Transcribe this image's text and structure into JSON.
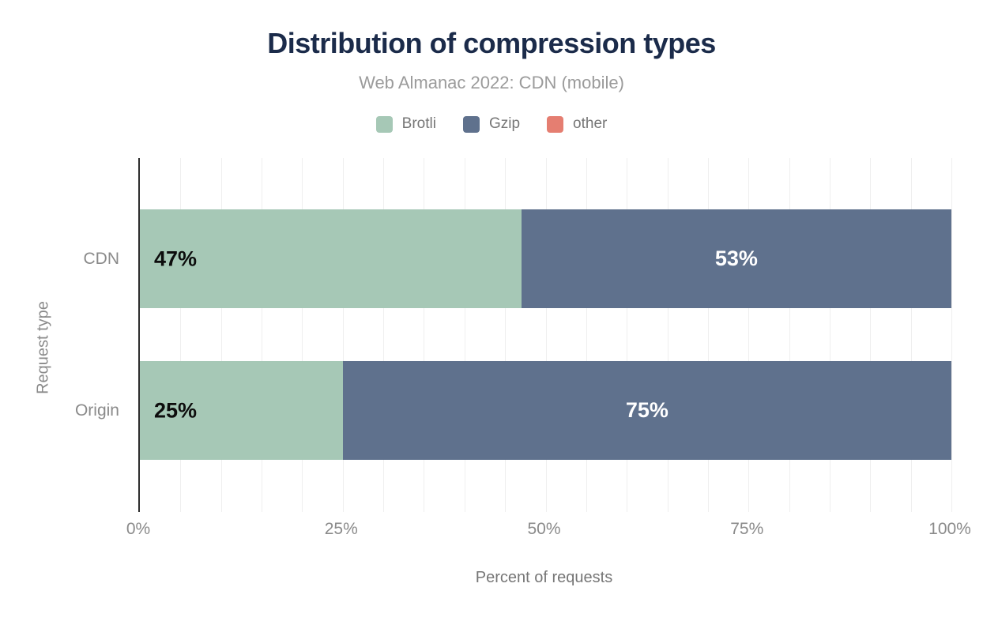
{
  "chart_data": {
    "type": "bar",
    "orientation": "horizontal-stacked",
    "title": "Distribution of compression types",
    "subtitle": "Web Almanac 2022: CDN (mobile)",
    "categories": [
      "CDN",
      "Origin"
    ],
    "series": [
      {
        "name": "Brotli",
        "color": "#a6c8b6",
        "label_color": "#0d0d0d",
        "values": [
          47,
          25
        ]
      },
      {
        "name": "Gzip",
        "color": "#5f718d",
        "label_color": "#ffffff",
        "values": [
          53,
          75
        ]
      },
      {
        "name": "other",
        "color": "#e57e71",
        "label_color": "#ffffff",
        "values": [
          0,
          0
        ]
      }
    ],
    "xlabel": "Percent of requests",
    "ylabel": "Request type",
    "x_ticks": [
      {
        "value": 0,
        "label": "0%"
      },
      {
        "value": 25,
        "label": "25%"
      },
      {
        "value": 50,
        "label": "50%"
      },
      {
        "value": 75,
        "label": "75%"
      },
      {
        "value": 100,
        "label": "100%"
      }
    ],
    "xlim": [
      0,
      100
    ],
    "gridline_step": 5,
    "grid": "vertical-minor",
    "legend_position": "top",
    "value_suffix": "%"
  },
  "colors": {
    "title_text": "#1b2b4a",
    "subtitle_text": "#9b9b9b",
    "axis_text": "#8a8a8a",
    "legend_text": "#767676",
    "axis_line": "#2d2d2d",
    "gridline": "#efefef",
    "background": "#ffffff"
  }
}
